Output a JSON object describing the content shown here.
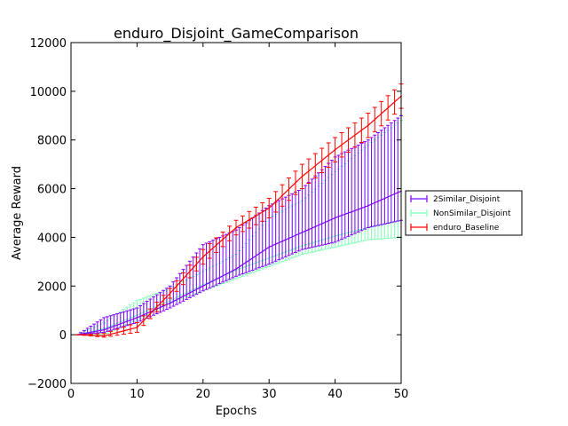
{
  "chart_data": {
    "type": "line",
    "title": "enduro_Disjoint_GameComparison",
    "xlabel": "Epochs",
    "ylabel": "Average Reward",
    "xlim": [
      0,
      50
    ],
    "ylim": [
      -2000,
      12000
    ],
    "xticks": [
      "0",
      "10",
      "20",
      "30",
      "40",
      "50"
    ],
    "yticks": [
      "−2000",
      "0",
      "2000",
      "4000",
      "6000",
      "8000",
      "10000",
      "12000"
    ],
    "grid": false,
    "legend_position": "right, outside axes",
    "x": [
      1,
      5,
      10,
      15,
      20,
      25,
      30,
      35,
      40,
      45,
      50
    ],
    "series": [
      {
        "name": "2Similar_Disjoint",
        "color": "#7f00ff",
        "values": [
          0,
          200,
          700,
          1300,
          2000,
          2700,
          3600,
          4200,
          4800,
          5300,
          5900
        ],
        "lower": [
          0,
          100,
          500,
          1100,
          1800,
          2400,
          2900,
          3500,
          3800,
          4400,
          4700
        ],
        "upper": [
          0,
          700,
          1100,
          2000,
          3700,
          4300,
          5300,
          6000,
          7300,
          8000,
          9000
        ]
      },
      {
        "name": "NonSimilar_Disjoint",
        "color": "#80ffb4",
        "values": [
          0,
          250,
          800,
          1400,
          2050,
          2650,
          3150,
          3650,
          4050,
          4400,
          4700
        ],
        "lower": [
          0,
          0,
          600,
          1300,
          1800,
          2300,
          2800,
          3300,
          3600,
          3900,
          4000
        ],
        "upper": [
          0,
          500,
          1400,
          1900,
          2600,
          3300,
          4800,
          5500,
          6700,
          7800,
          8800
        ]
      },
      {
        "name": "enduro_Baseline",
        "color": "#ff0000",
        "values": [
          0,
          -50,
          300,
          1700,
          3200,
          4400,
          5200,
          6500,
          7600,
          8600,
          9800
        ],
        "lower": [
          0,
          -100,
          100,
          1500,
          2900,
          4100,
          4800,
          6000,
          7100,
          8100,
          9300
        ],
        "upper": [
          0,
          50,
          500,
          1900,
          3500,
          4700,
          5600,
          7000,
          8100,
          9100,
          10300
        ]
      }
    ]
  }
}
